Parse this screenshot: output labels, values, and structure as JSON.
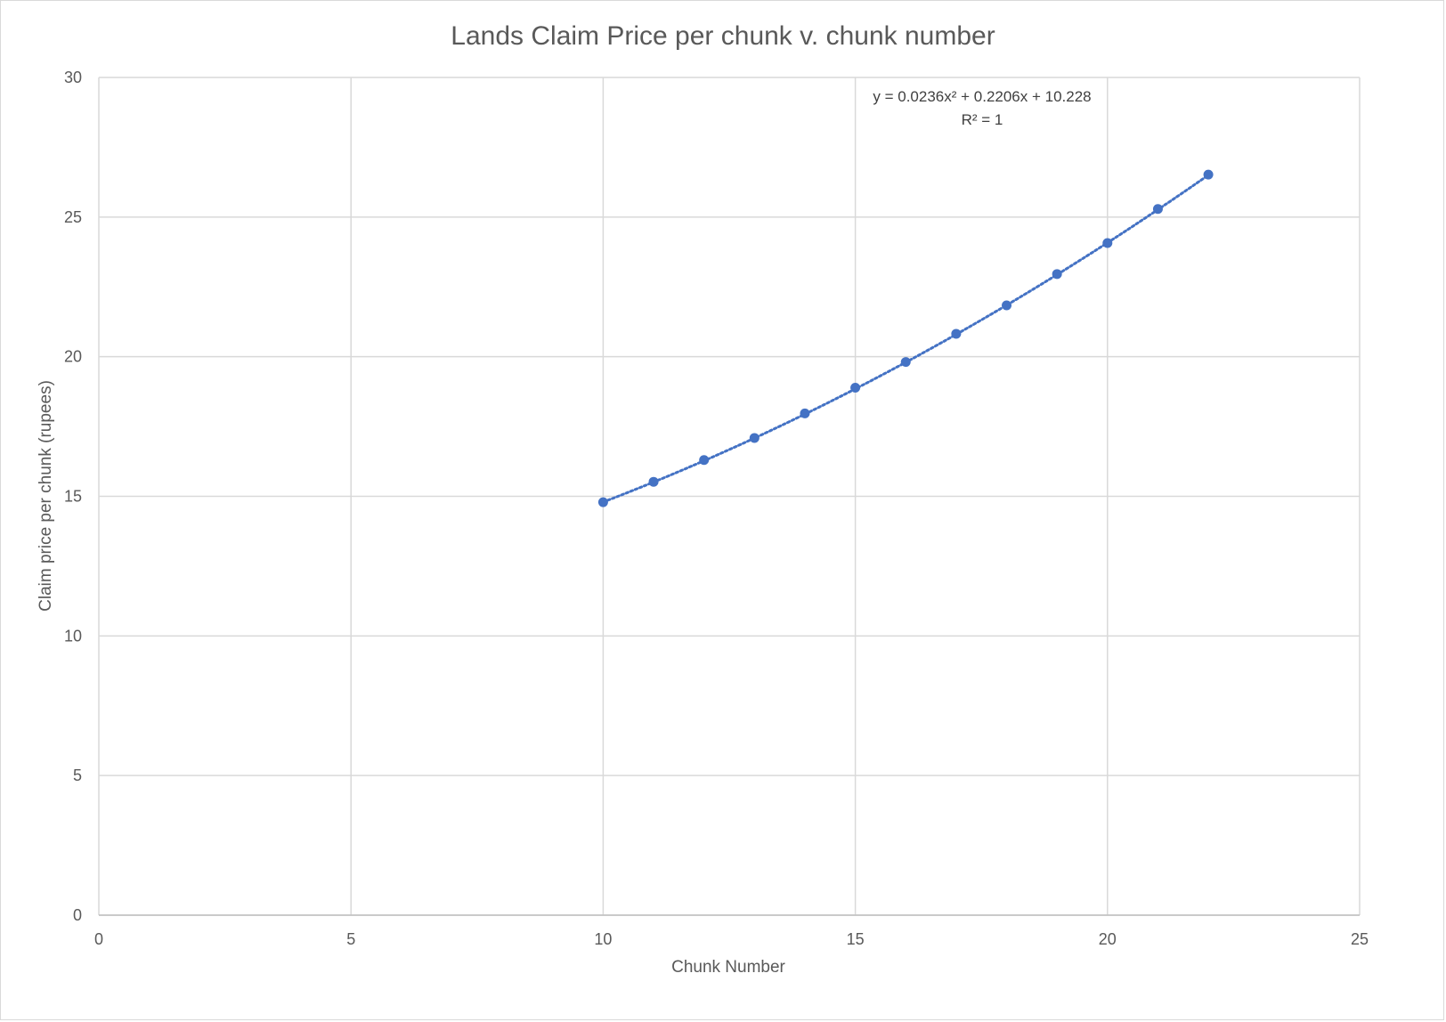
{
  "chart_data": {
    "type": "scatter",
    "title": "Lands Claim Price per chunk v. chunk number",
    "xlabel": "Chunk Number",
    "ylabel": "Claim price per chunk (rupees)",
    "xlim": [
      0,
      25
    ],
    "ylim": [
      0,
      30
    ],
    "xticks": [
      0,
      5,
      10,
      15,
      20,
      25
    ],
    "yticks": [
      0,
      5,
      10,
      15,
      20,
      25,
      30
    ],
    "grid": true,
    "legend": "none",
    "series": [
      {
        "color": "#4472c4",
        "x": [
          10,
          11,
          12,
          13,
          14,
          15,
          16,
          17,
          18,
          19,
          20,
          21,
          22
        ],
        "y": [
          14.79,
          15.52,
          16.3,
          17.09,
          17.97,
          18.89,
          19.81,
          20.82,
          21.84,
          22.96,
          24.07,
          25.29,
          26.52
        ]
      }
    ],
    "trendline": {
      "type": "polynomial",
      "order": 2,
      "coefficients": [
        0.0236,
        0.2206,
        10.228
      ],
      "x_range": [
        10,
        22
      ],
      "style": "dotted",
      "color": "#4472c4",
      "equation": "y = 0.0236x² + 0.2206x + 10.228",
      "r_squared": "R² = 1"
    }
  }
}
